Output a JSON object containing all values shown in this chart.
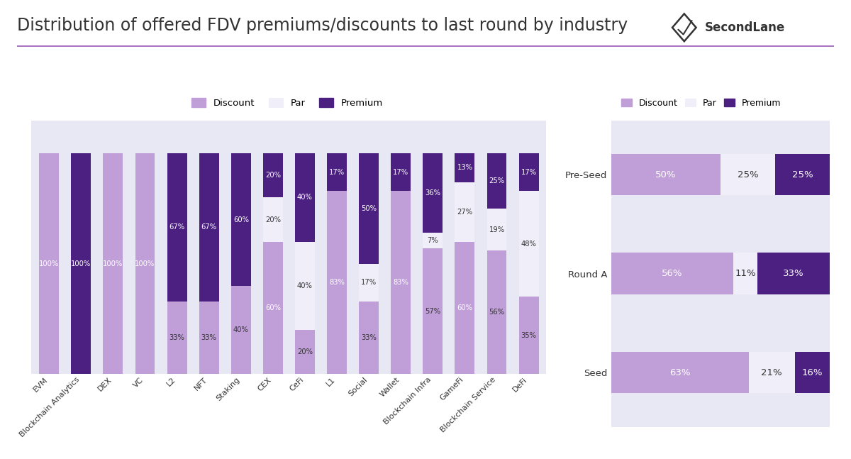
{
  "title": "Distribution of offered FDV premiums/discounts to last round by industry",
  "bg_color": "#ffffff",
  "panel_bg": "#e8e8f5",
  "header_bg": "#5c2d82",
  "header_text": "#ffffff",
  "discount_color": "#c09fd8",
  "par_color": "#f0eef8",
  "premium_color": "#4b2080",
  "industry_categories": [
    "EVM",
    "Blockchain Analytics",
    "DEX",
    "VC",
    "L2",
    "NFT",
    "Staking",
    "CEX",
    "CeFi",
    "L1",
    "Social",
    "Wallet",
    "Blockchain Infra",
    "GameFi",
    "Blockchain Service",
    "DeFi"
  ],
  "industry_discount": [
    100,
    0,
    100,
    100,
    33,
    33,
    40,
    60,
    20,
    83,
    33,
    83,
    57,
    60,
    56,
    35
  ],
  "industry_par": [
    0,
    0,
    0,
    0,
    0,
    0,
    0,
    20,
    40,
    0,
    17,
    0,
    7,
    27,
    19,
    48
  ],
  "industry_premium": [
    0,
    100,
    0,
    0,
    67,
    67,
    60,
    20,
    40,
    17,
    50,
    17,
    36,
    13,
    25,
    17
  ],
  "round_categories": [
    "Pre-Seed",
    "Round A",
    "Seed"
  ],
  "round_discount": [
    50,
    56,
    63
  ],
  "round_par": [
    25,
    11,
    21
  ],
  "round_premium": [
    25,
    33,
    16
  ],
  "logo_text": "SecondLane",
  "text_color": "#333333",
  "line_color": "#9b59b6"
}
